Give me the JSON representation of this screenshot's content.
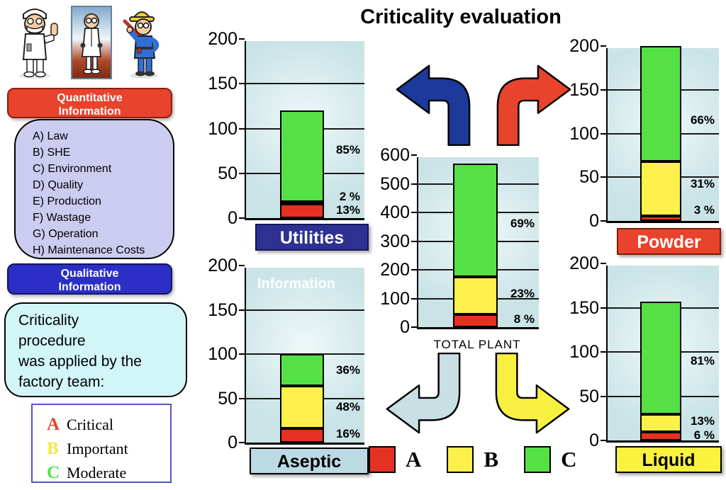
{
  "title": "Criticality evaluation",
  "sidebar": {
    "cartoons": [
      "pharmacist-thumbs-up",
      "scientist-lab-coat",
      "worker-hard-hat"
    ],
    "quantitative": [
      "Quantitative",
      "Information"
    ],
    "criteria": [
      "A) Law",
      "B) SHE",
      "C) Environment",
      "D) Quality",
      "E) Production",
      "F) Wastage",
      "G) Operation",
      "H) Maintenance Costs"
    ],
    "qualitative": [
      "Qualitative",
      "Information"
    ],
    "procedure_lines": [
      "Criticality",
      "procedure",
      "was applied by the",
      "factory team:"
    ],
    "severity_legend": [
      {
        "letter": "A",
        "color": "#e8432c",
        "label": "Critical"
      },
      {
        "letter": "B",
        "color": "#f5e93d",
        "label": "Important"
      },
      {
        "letter": "C",
        "color": "#4ce44c",
        "label": "Moderate"
      }
    ]
  },
  "arrows": {
    "top_left_color": "#1c3a9b",
    "top_right_color": "#e8432c",
    "bottom_left_color": "#c8dfe4",
    "bottom_right_color": "#f8f040"
  },
  "chart_data": {
    "type": "bar",
    "subtype": "stacked",
    "title": "Criticality evaluation",
    "series_colors": {
      "A": "#e53122",
      "B": "#fdf04a",
      "C": "#55e146"
    },
    "series_names": {
      "A": "Critical",
      "B": "Important",
      "C": "Moderate"
    },
    "series_legend": [
      "A",
      "B",
      "C"
    ],
    "charts": [
      {
        "id": "utilities",
        "title": "Utilities",
        "ylim": [
          0,
          200
        ],
        "yticks": [
          0,
          50,
          100,
          150,
          200
        ],
        "total": 120,
        "segments": [
          {
            "series": "A",
            "value": 15.6,
            "pct": "13%",
            "label_at": 9
          },
          {
            "series": "B",
            "value": 2.4,
            "pct": "2 %",
            "label_at": 24
          },
          {
            "series": "C",
            "value": 102,
            "pct": "85%",
            "label_at": 76
          }
        ]
      },
      {
        "id": "aseptic",
        "title": "Aseptic",
        "ylim": [
          0,
          200
        ],
        "yticks": [
          0,
          50,
          100,
          150,
          200
        ],
        "total": 100,
        "watermark": "Information",
        "segments": [
          {
            "series": "A",
            "value": 16,
            "pct": "16%",
            "label_at": 10
          },
          {
            "series": "B",
            "value": 48,
            "pct": "48%",
            "label_at": 40
          },
          {
            "series": "C",
            "value": 36,
            "pct": "36%",
            "label_at": 82
          }
        ]
      },
      {
        "id": "total_plant",
        "title": "TOTAL PLANT",
        "ylim": [
          0,
          600
        ],
        "yticks": [
          0,
          100,
          200,
          300,
          400,
          500,
          600
        ],
        "total": 570,
        "segments": [
          {
            "series": "A",
            "value": 45,
            "pct": "8 %",
            "label_at": 28
          },
          {
            "series": "B",
            "value": 131,
            "pct": "23%",
            "label_at": 115
          },
          {
            "series": "C",
            "value": 394,
            "pct": "69%",
            "label_at": 360
          }
        ]
      },
      {
        "id": "powder",
        "title": "Powder",
        "ylim": [
          0,
          200
        ],
        "yticks": [
          0,
          50,
          100,
          150,
          200
        ],
        "total": 200,
        "segments": [
          {
            "series": "A",
            "value": 6,
            "pct": "3 %",
            "label_at": 12
          },
          {
            "series": "B",
            "value": 62,
            "pct": "31%",
            "label_at": 42
          },
          {
            "series": "C",
            "value": 132,
            "pct": "66%",
            "label_at": 115
          }
        ]
      },
      {
        "id": "liquid",
        "title": "Liquid",
        "ylim": [
          0,
          200
        ],
        "yticks": [
          0,
          50,
          100,
          150,
          200
        ],
        "total": 157,
        "segments": [
          {
            "series": "A",
            "value": 9.5,
            "pct": "6 %",
            "label_at": 6
          },
          {
            "series": "B",
            "value": 20.5,
            "pct": "13%",
            "label_at": 22
          },
          {
            "series": "C",
            "value": 127,
            "pct": "81%",
            "label_at": 90
          }
        ]
      }
    ]
  }
}
